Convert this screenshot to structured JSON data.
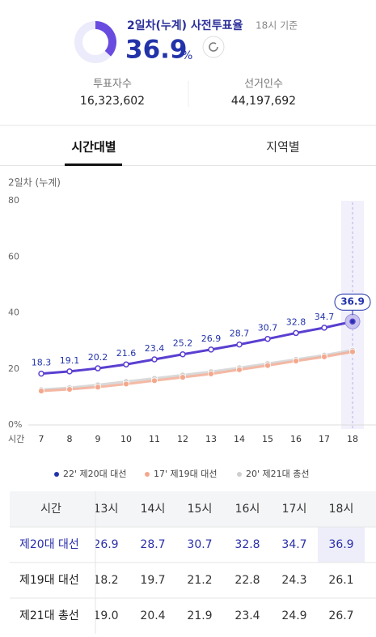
{
  "header": {
    "title": "2일차(누계) 사전투표율",
    "basis": "18시 기준",
    "rate": "36.9",
    "unit": "%"
  },
  "stats": [
    {
      "label": "투표자수",
      "value": "16,323,602"
    },
    {
      "label": "선거인수",
      "value": "44,197,692"
    }
  ],
  "tabs": [
    "시간대별",
    "지역별"
  ],
  "chart_data": {
    "type": "line",
    "title": "2일차 (누계)",
    "xlabel": "시간",
    "categories": [
      7,
      8,
      9,
      10,
      11,
      12,
      13,
      14,
      15,
      16,
      17,
      18
    ],
    "ylim": [
      0,
      80
    ],
    "yticks": [
      {
        "value": 0,
        "label": "0%"
      },
      20,
      40,
      60,
      80
    ],
    "series": [
      {
        "name": "22' 제20대 대선",
        "color": "#5a3fd0",
        "values": [
          18.3,
          19.1,
          20.2,
          21.6,
          23.4,
          25.2,
          26.9,
          28.7,
          30.7,
          32.8,
          34.7,
          36.9
        ]
      },
      {
        "name": "17' 제19대 대선",
        "color": "#f3a88e",
        "values": [
          12.1,
          12.7,
          13.5,
          14.6,
          15.8,
          17.0,
          18.2,
          19.7,
          21.2,
          22.8,
          24.3,
          26.1
        ]
      },
      {
        "name": "20' 제21대 총선",
        "color": "#cfcfcf",
        "values": [
          12.6,
          13.3,
          14.3,
          15.5,
          16.6,
          17.8,
          19.0,
          20.4,
          21.9,
          23.4,
          24.9,
          26.7
        ]
      }
    ],
    "legend": "bottom"
  },
  "table": {
    "columns": [
      "시간",
      "13시",
      "14시",
      "15시",
      "16시",
      "17시",
      "18시"
    ],
    "rows": [
      {
        "name": "제20대 대선",
        "cells": [
          "26.9",
          "28.7",
          "30.7",
          "32.8",
          "34.7",
          "36.9"
        ]
      },
      {
        "name": "제19대 대선",
        "cells": [
          "18.2",
          "19.7",
          "21.2",
          "22.8",
          "24.3",
          "26.1"
        ]
      },
      {
        "name": "제21대 총선",
        "cells": [
          "19.0",
          "20.4",
          "21.9",
          "23.4",
          "24.9",
          "26.7"
        ]
      }
    ]
  }
}
